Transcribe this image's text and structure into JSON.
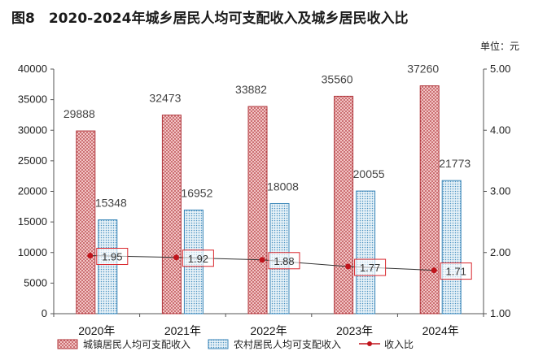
{
  "title": "图8　2020-2024年城乡居民人均可支配收入及城乡居民收入比",
  "unit": "单位：元",
  "colors": {
    "urban_fill": "#f2c4c4",
    "urban_stroke": "#b0343a",
    "rural_fill": "#cfe3ee",
    "rural_stroke": "#3a86b8",
    "ratio_line": "#333333",
    "ratio_marker": "#c0141c",
    "ratio_label_box": "#d9262c"
  },
  "chart_data": {
    "type": "bar",
    "categories": [
      "2020年",
      "2021年",
      "2022年",
      "2023年",
      "2024年"
    ],
    "series": [
      {
        "name": "城镇居民人均可支配收入",
        "type": "bar",
        "axis": "left",
        "values": [
          29888,
          32473,
          33882,
          35560,
          37260
        ]
      },
      {
        "name": "农村居民人均可支配收入",
        "type": "bar",
        "axis": "left",
        "values": [
          15348,
          16952,
          18008,
          20055,
          21773
        ]
      },
      {
        "name": "收入比",
        "type": "line",
        "axis": "right",
        "values": [
          1.95,
          1.92,
          1.88,
          1.77,
          1.71
        ]
      }
    ],
    "ylim": [
      0,
      40000
    ],
    "yticks": [
      "0",
      "5000",
      "10000",
      "15000",
      "20000",
      "25000",
      "30000",
      "35000",
      "40000"
    ],
    "y2lim": [
      1.0,
      5.0
    ],
    "y2ticks": [
      "1.00",
      "2.00",
      "3.00",
      "4.00",
      "5.00"
    ],
    "grid": false,
    "legend_position": "bottom"
  }
}
